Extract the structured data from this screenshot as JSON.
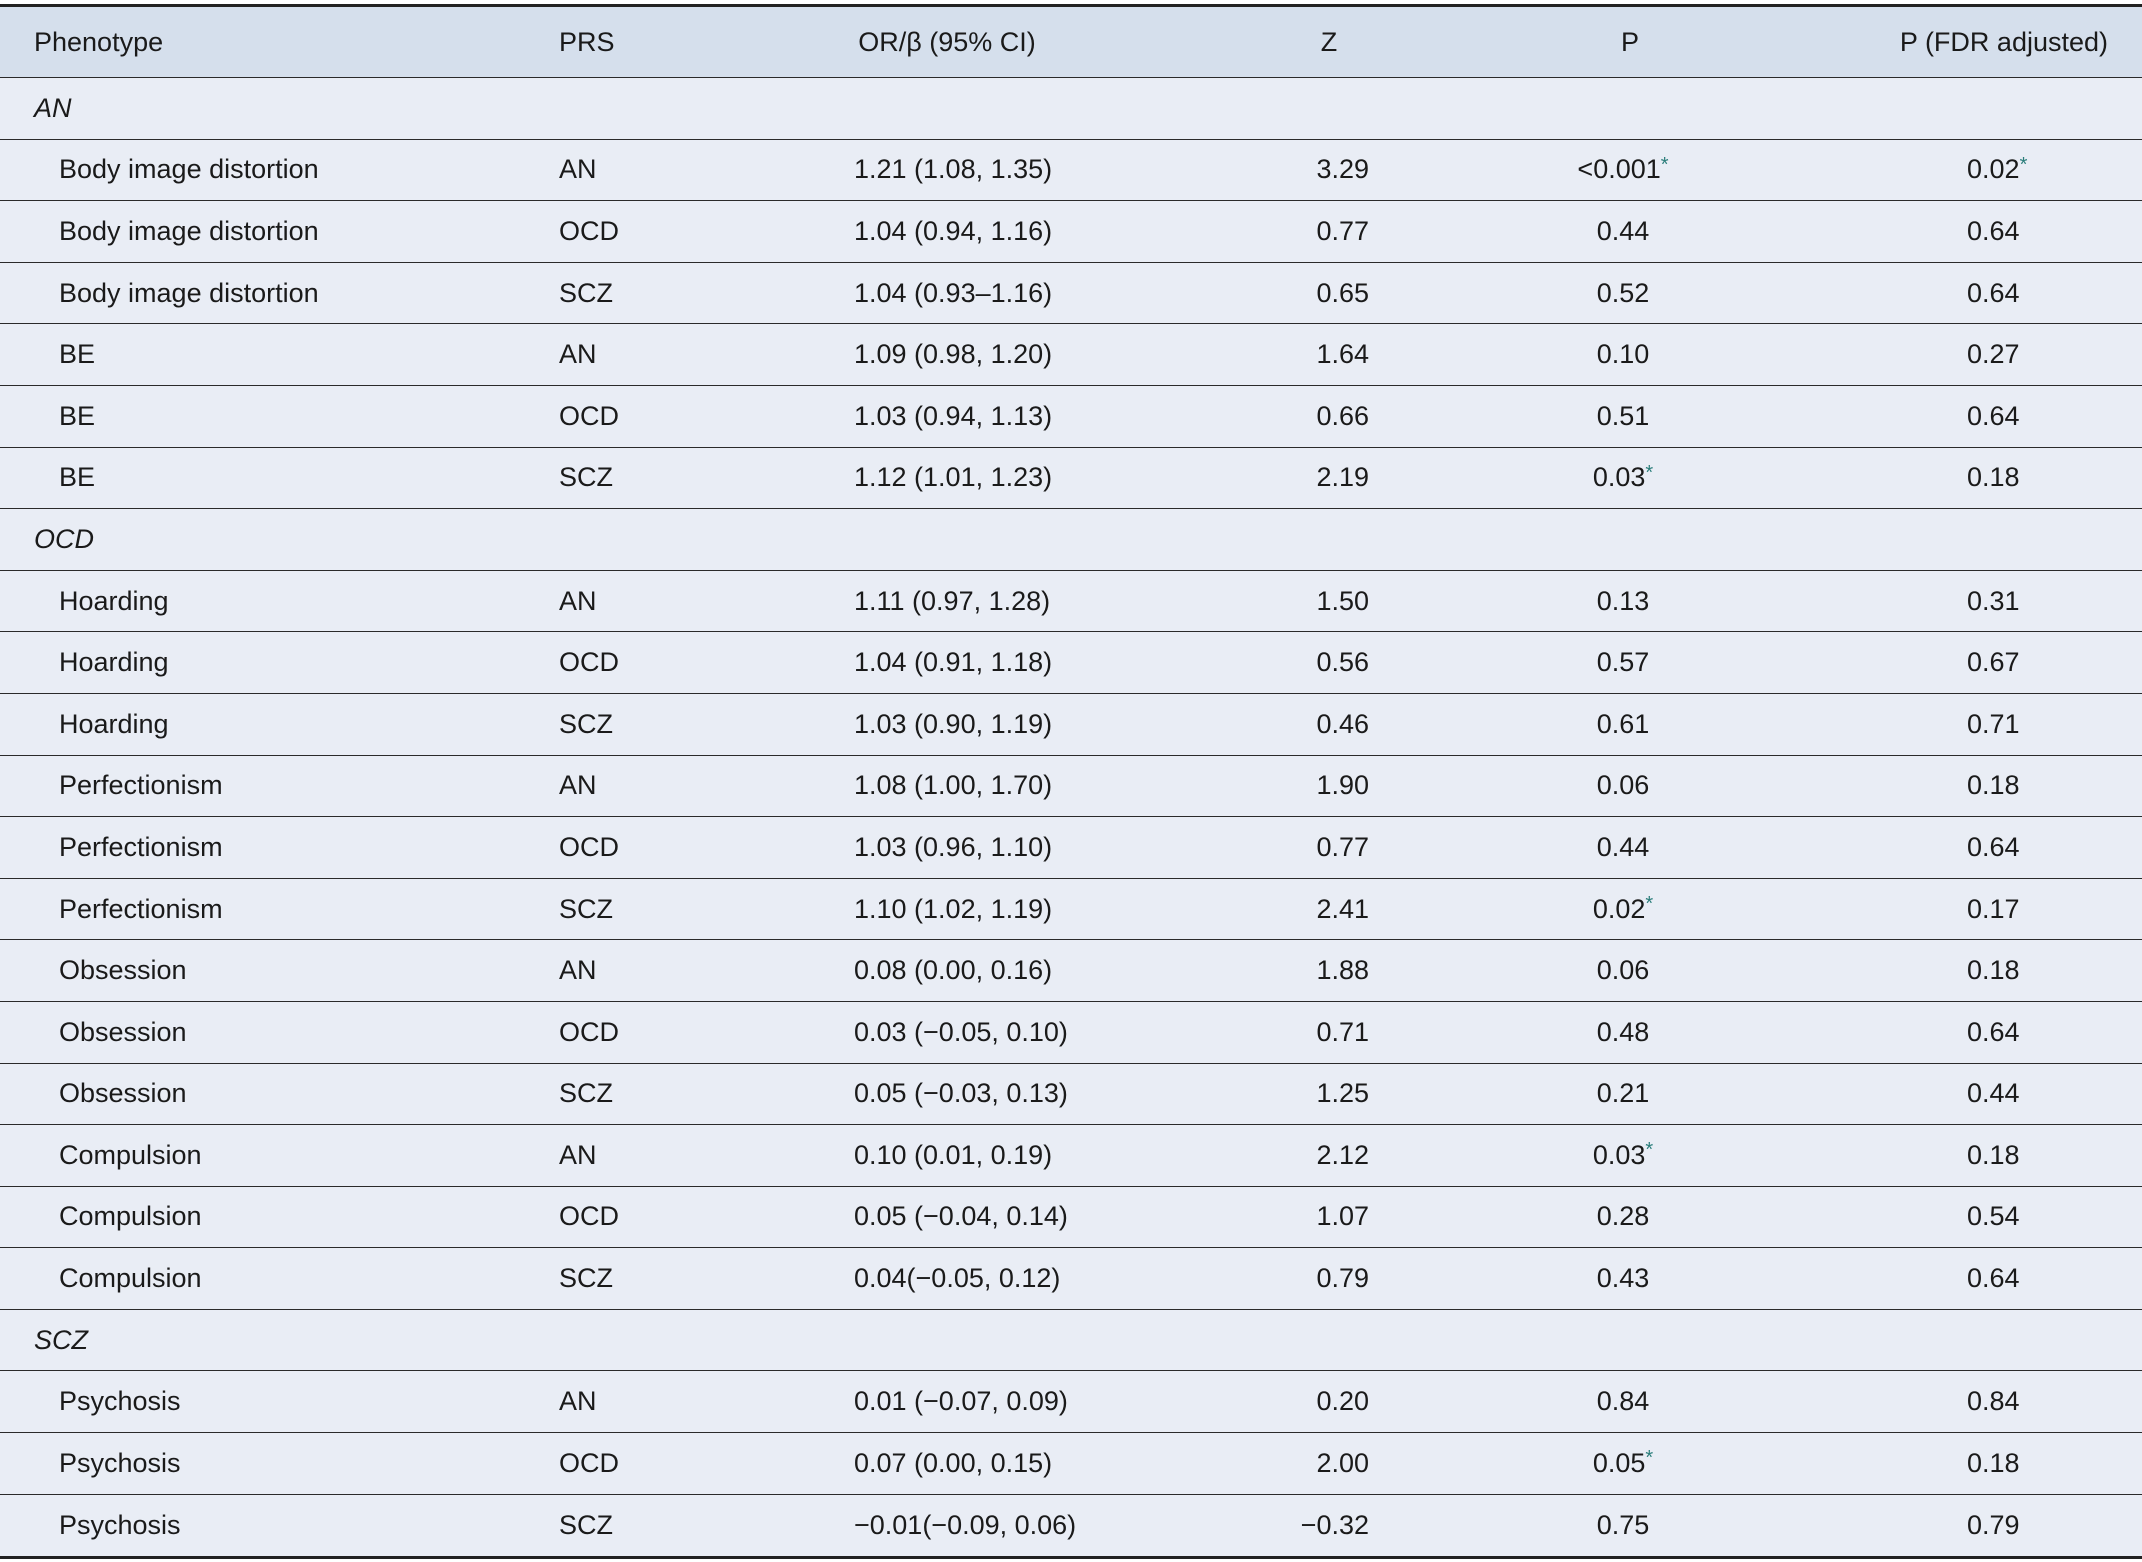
{
  "headers": {
    "phenotype": "Phenotype",
    "prs": "PRS",
    "or": "OR/β (95% CI)",
    "z": "Z",
    "p": "P",
    "fdr": "P (FDR adjusted)"
  },
  "significance_marker": "*",
  "significance_color": "#2a7d7a",
  "groups": [
    {
      "label": "AN",
      "rows": [
        {
          "phenotype": "Body image distortion",
          "prs": "AN",
          "or": "1.21 (1.08, 1.35)",
          "z": "3.29",
          "p": "<0.001",
          "p_sig": true,
          "fdr": "0.02",
          "fdr_sig": true
        },
        {
          "phenotype": "Body image distortion",
          "prs": "OCD",
          "or": "1.04 (0.94, 1.16)",
          "z": "0.77",
          "p": "0.44",
          "fdr": "0.64"
        },
        {
          "phenotype": "Body image distortion",
          "prs": "SCZ",
          "or": "1.04 (0.93–1.16)",
          "z": "0.65",
          "p": "0.52",
          "fdr": "0.64"
        },
        {
          "phenotype": "BE",
          "prs": "AN",
          "or": "1.09 (0.98, 1.20)",
          "z": "1.64",
          "p": "0.10",
          "fdr": "0.27"
        },
        {
          "phenotype": "BE",
          "prs": "OCD",
          "or": "1.03 (0.94, 1.13)",
          "z": "0.66",
          "p": "0.51",
          "fdr": "0.64"
        },
        {
          "phenotype": "BE",
          "prs": "SCZ",
          "or": "1.12 (1.01, 1.23)",
          "z": "2.19",
          "p": "0.03",
          "p_sig": true,
          "fdr": "0.18"
        }
      ]
    },
    {
      "label": "OCD",
      "rows": [
        {
          "phenotype": "Hoarding",
          "prs": "AN",
          "or": "1.11 (0.97, 1.28)",
          "z": "1.50",
          "p": "0.13",
          "fdr": "0.31"
        },
        {
          "phenotype": "Hoarding",
          "prs": "OCD",
          "or": "1.04 (0.91, 1.18)",
          "z": "0.56",
          "p": "0.57",
          "fdr": "0.67"
        },
        {
          "phenotype": "Hoarding",
          "prs": "SCZ",
          "or": "1.03 (0.90, 1.19)",
          "z": "0.46",
          "p": "0.61",
          "fdr": "0.71"
        },
        {
          "phenotype": "Perfectionism",
          "prs": "AN",
          "or": "1.08 (1.00, 1.70)",
          "z": "1.90",
          "p": "0.06",
          "fdr": "0.18"
        },
        {
          "phenotype": "Perfectionism",
          "prs": "OCD",
          "or": "1.03 (0.96, 1.10)",
          "z": "0.77",
          "p": "0.44",
          "fdr": "0.64"
        },
        {
          "phenotype": "Perfectionism",
          "prs": "SCZ",
          "or": "1.10 (1.02, 1.19)",
          "z": "2.41",
          "p": "0.02",
          "p_sig": true,
          "fdr": "0.17"
        },
        {
          "phenotype": "Obsession",
          "prs": "AN",
          "or": "0.08 (0.00, 0.16)",
          "z": "1.88",
          "p": "0.06",
          "fdr": "0.18"
        },
        {
          "phenotype": "Obsession",
          "prs": "OCD",
          "or": "0.03 (−0.05, 0.10)",
          "z": "0.71",
          "p": "0.48",
          "fdr": "0.64"
        },
        {
          "phenotype": "Obsession",
          "prs": "SCZ",
          "or": "0.05 (−0.03, 0.13)",
          "z": "1.25",
          "p": "0.21",
          "fdr": "0.44"
        },
        {
          "phenotype": "Compulsion",
          "prs": "AN",
          "or": "0.10 (0.01, 0.19)",
          "z": "2.12",
          "p": "0.03",
          "p_sig": true,
          "fdr": "0.18"
        },
        {
          "phenotype": "Compulsion",
          "prs": "OCD",
          "or": "0.05 (−0.04, 0.14)",
          "z": "1.07",
          "p": "0.28",
          "fdr": "0.54"
        },
        {
          "phenotype": "Compulsion",
          "prs": "SCZ",
          "or": "0.04(−0.05, 0.12)",
          "z": "0.79",
          "p": "0.43",
          "fdr": "0.64"
        }
      ]
    },
    {
      "label": "SCZ",
      "rows": [
        {
          "phenotype": "Psychosis",
          "prs": "AN",
          "or": "0.01 (−0.07, 0.09)",
          "z": "0.20",
          "p": "0.84",
          "fdr": "0.84"
        },
        {
          "phenotype": "Psychosis",
          "prs": "OCD",
          "or": "0.07 (0.00, 0.15)",
          "z": "2.00",
          "p": "0.05",
          "p_sig": true,
          "fdr": "0.18"
        },
        {
          "phenotype": "Psychosis",
          "prs": "SCZ",
          "or": "−0.01(−0.09, 0.06)",
          "z": "−0.32",
          "p": "0.75",
          "fdr": "0.79"
        }
      ]
    }
  ]
}
